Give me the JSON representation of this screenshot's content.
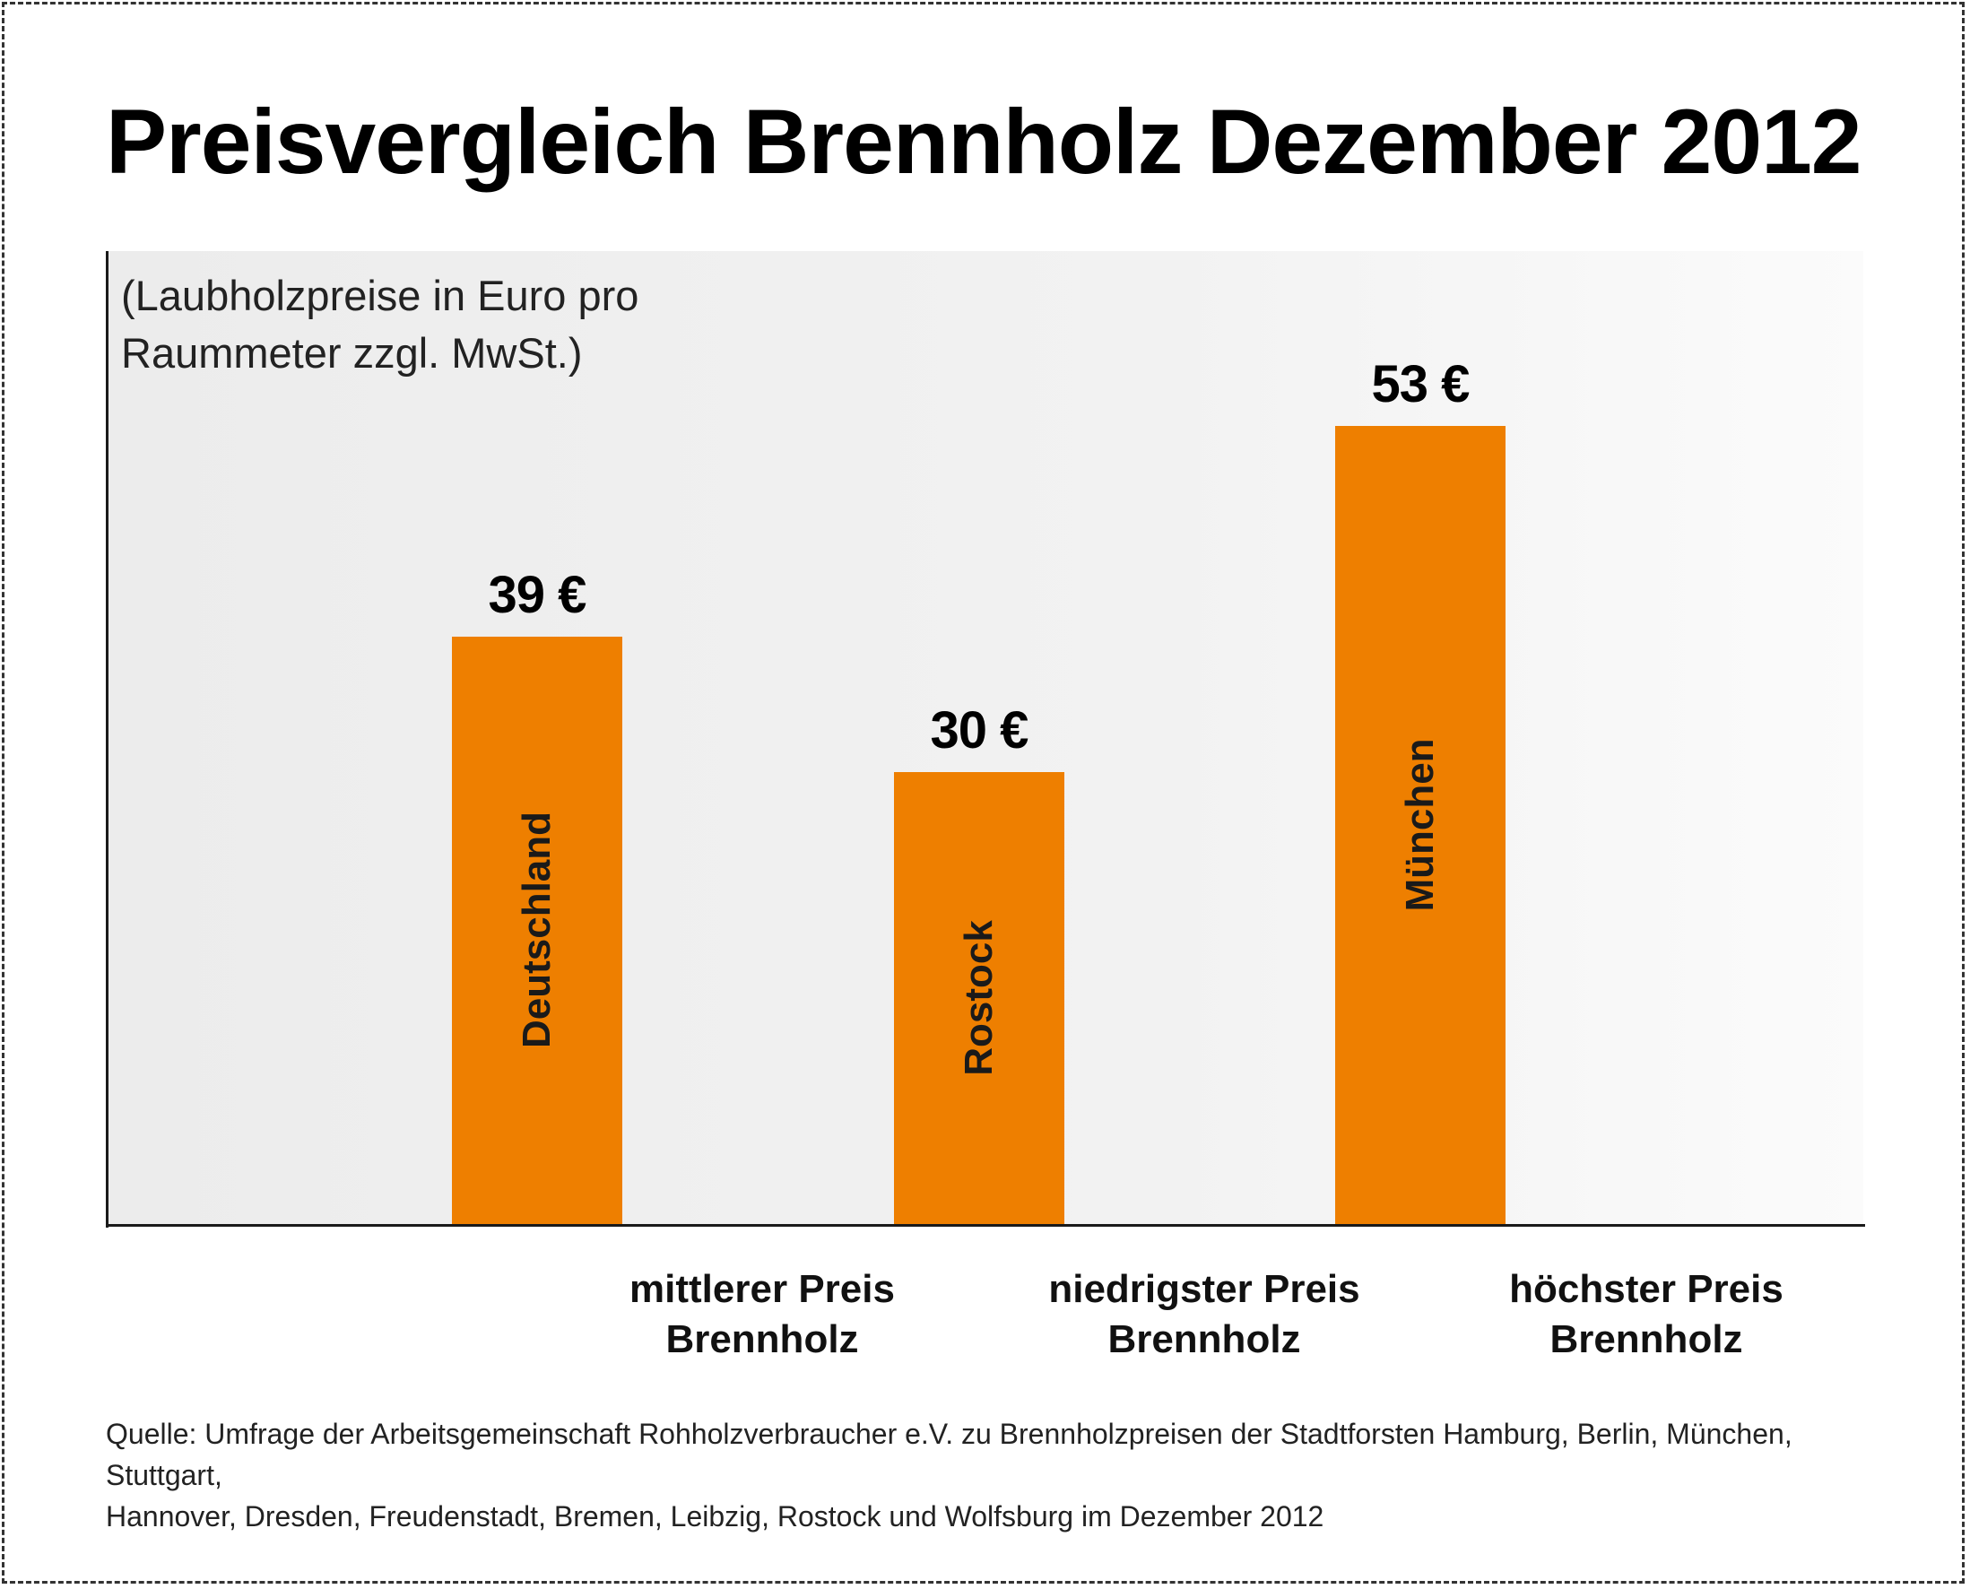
{
  "title": "Preisvergleich Brennholz Dezember 2012",
  "subtitle_line1": "(Laubholzpreise in Euro pro",
  "subtitle_line2": "Raummeter zzgl. MwSt.)",
  "source_line1": "Quelle: Umfrage der Arbeitsgemeinschaft Rohholzverbraucher e.V. zu Brennholzpreisen der Stadtforsten Hamburg, Berlin, München, Stuttgart,",
  "source_line2": "Hannover, Dresden, Freudenstadt, Bremen, Leibzig, Rostock und Wolfsburg im Dezember 2012",
  "colors": {
    "bar": "#ee7f00",
    "axis": "#1a1a1a"
  },
  "chart_data": {
    "type": "bar",
    "title": "Preisvergleich Brennholz Dezember 2012",
    "ylabel": "",
    "xlabel": "",
    "ylim": [
      0,
      60
    ],
    "grid": false,
    "categories": [
      {
        "line1": "mittlerer Preis",
        "line2": "Brennholz"
      },
      {
        "line1": "niedrigster Preis",
        "line2": "Brennholz"
      },
      {
        "line1": "höchster Preis",
        "line2": "Brennholz"
      }
    ],
    "bars": [
      {
        "value": 39,
        "value_label": "39 €",
        "inner_label": "Deutschland"
      },
      {
        "value": 30,
        "value_label": "30 €",
        "inner_label": "Rostock"
      },
      {
        "value": 53,
        "value_label": "53 €",
        "inner_label": "München"
      }
    ]
  }
}
